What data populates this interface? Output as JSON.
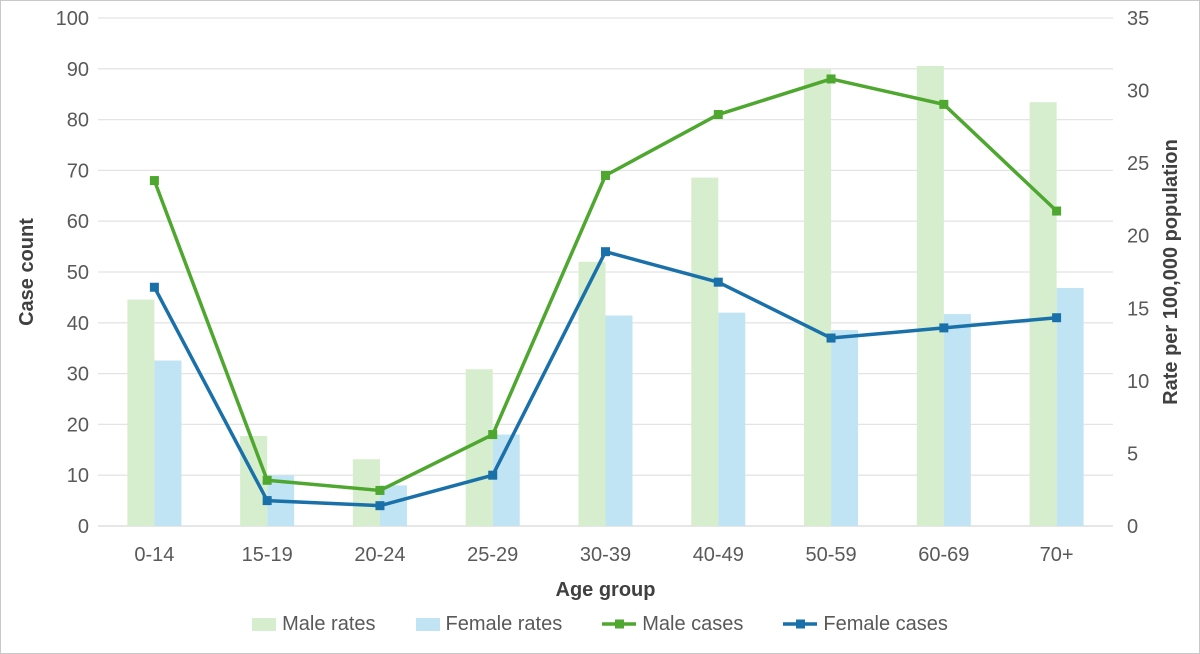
{
  "chart_data": {
    "type": "combo",
    "title": "",
    "categories": [
      "0-14",
      "15-19",
      "20-24",
      "25-29",
      "30-39",
      "40-49",
      "50-59",
      "60-69",
      "70+"
    ],
    "series": [
      {
        "name": "Male rates",
        "type": "bar",
        "axis": "right",
        "color": "#d6eecd",
        "values": [
          15.6,
          6.2,
          4.6,
          10.8,
          18.2,
          24.0,
          31.5,
          31.7,
          29.2
        ]
      },
      {
        "name": "Female rates",
        "type": "bar",
        "axis": "right",
        "color": "#c0e4f4",
        "values": [
          11.4,
          3.5,
          2.8,
          6.3,
          14.5,
          14.7,
          13.5,
          14.6,
          16.4
        ]
      },
      {
        "name": "Male cases",
        "type": "line",
        "axis": "left",
        "color": "#4ea72e",
        "values": [
          68,
          9,
          7,
          18,
          69,
          81,
          88,
          83,
          62
        ]
      },
      {
        "name": "Female cases",
        "type": "line",
        "axis": "left",
        "color": "#1a70a8",
        "values": [
          47,
          5,
          4,
          10,
          54,
          48,
          37,
          39,
          41
        ]
      }
    ],
    "left_axis": {
      "title": "Case count",
      "min": 0,
      "max": 100,
      "step": 10
    },
    "right_axis": {
      "title": "Rate per 100,000 population",
      "min": 0,
      "max": 35,
      "step": 5
    },
    "x_axis": {
      "title": "Age group"
    },
    "legend_position": "bottom",
    "grid": true,
    "colors": {
      "gridline": "#e4e4e4",
      "baseline": "#d6d6d6",
      "tick_label": "#595959",
      "axis_title": "#404040"
    }
  }
}
